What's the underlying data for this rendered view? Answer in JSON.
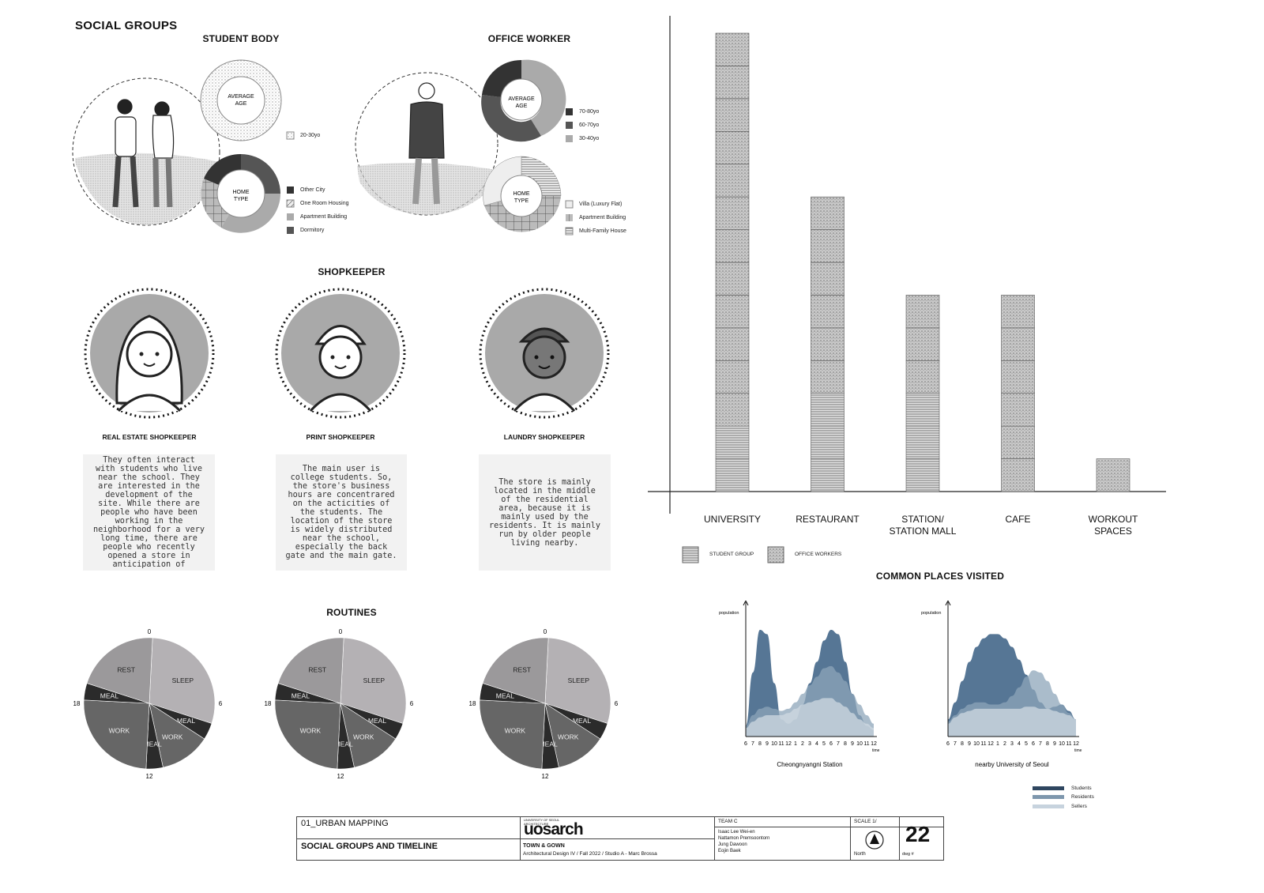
{
  "headings": {
    "social_groups": "SOCIAL GROUPS",
    "student_body": "STUDENT BODY",
    "office_worker": "OFFICE WORKER",
    "shopkeeper": "SHOPKEEPER",
    "routines": "ROUTINES",
    "common_places": "COMMON PLACES VISITED"
  },
  "student_body": {
    "avg_age_label": "AVERAGE AGE",
    "age_legend": [
      "20-30yo"
    ],
    "home_type_label": "HOME TYPE",
    "home_legend": [
      "Other City",
      "One Room Housing",
      "Apartment Building",
      "Dormitory"
    ]
  },
  "office_worker": {
    "avg_age_label": "AVERAGE AGE",
    "age_legend": [
      "70-80yo",
      "60-70yo",
      "30-40yo"
    ],
    "home_type_label": "HOME TYPE",
    "home_legend": [
      "Villa (Luxury Flat)",
      "Apartment Building",
      "Multi-Family House"
    ]
  },
  "shopkeepers": [
    {
      "label": "REAL ESTATE SHOPKEEPER",
      "text": "They often interact with students who live near the school. They are interested in the development of the site. While there are people who have been working in the neighborhood for a very long time, there are people who recently opened a store in anticipation of"
    },
    {
      "label": "PRINT SHOPKEEPER",
      "text": "The main user is college students. So, the store's business hours are concentrared on the acticities of the students. The location of the store is widely distributed near the school, especially the back gate and the main gate."
    },
    {
      "label": "LAUNDRY SHOPKEEPER",
      "text": "The store is mainly located in the middle of the residential area, because it is mainly used by the residents. It is mainly run by older people living nearby."
    }
  ],
  "routine_clock_ticks": [
    "0",
    "6",
    "12",
    "18"
  ],
  "chart_data": [
    {
      "type": "bar",
      "categories": [
        "UNIVERSITY",
        "RESTAURANT",
        "STATION/\nSTATION MALL",
        "CAFE",
        "WORKOUT\nSPACES"
      ],
      "series": [
        {
          "name": "STUDENT GROUP",
          "values": [
            2,
            3,
            3,
            0,
            0
          ]
        },
        {
          "name": "OFFICE WORKERS",
          "values": [
            12,
            6,
            3,
            6,
            1
          ]
        }
      ],
      "stacked": true,
      "ylim": [
        0,
        14
      ],
      "legend": "bottom-left"
    },
    {
      "type": "pie",
      "title": "",
      "labels": [
        "SLEEP",
        "MEAL",
        "WORK",
        "MEAL",
        "WORK",
        "MEAL",
        "REST"
      ],
      "values": [
        7,
        1,
        3,
        1,
        6,
        1,
        5
      ]
    },
    {
      "type": "pie",
      "title": "",
      "labels": [
        "SLEEP",
        "MEAL",
        "WORK",
        "MEAL",
        "WORK",
        "MEAL",
        "REST"
      ],
      "values": [
        7,
        1,
        3,
        1,
        6,
        1,
        5
      ]
    },
    {
      "type": "pie",
      "title": "",
      "labels": [
        "SLEEP",
        "MEAL",
        "WORK",
        "MEAL",
        "WORK",
        "MEAL",
        "REST"
      ],
      "values": [
        7,
        1,
        3,
        1,
        6,
        1,
        5
      ]
    },
    {
      "type": "area",
      "title": "Cheongnyangni Station",
      "ylabel": "population",
      "xlabel": "time",
      "x": [
        "6",
        "7",
        "8",
        "9",
        "10",
        "11",
        "12",
        "1",
        "2",
        "3",
        "4",
        "5",
        "6",
        "7",
        "8",
        "9",
        "10",
        "11",
        "12"
      ],
      "series": [
        {
          "name": "Students",
          "values": [
            0.5,
            3,
            5,
            4.8,
            2.5,
            0.8,
            0.6,
            0.8,
            1.5,
            2.5,
            3.5,
            4.5,
            5,
            4.8,
            3.5,
            2,
            1,
            0.5,
            0.3
          ]
        },
        {
          "name": "Residents",
          "values": [
            0.5,
            1,
            1.3,
            1.4,
            1.3,
            1.2,
            1.3,
            1.6,
            2,
            2.4,
            2.8,
            3.2,
            3.3,
            3,
            2.6,
            2,
            1.5,
            1,
            0.6
          ]
        },
        {
          "name": "Sellers",
          "values": [
            0.4,
            0.7,
            0.9,
            1,
            1,
            1,
            1.1,
            1.3,
            1.5,
            1.6,
            1.7,
            1.8,
            1.8,
            1.6,
            1.4,
            1.1,
            0.8,
            0.6,
            0.4
          ]
        }
      ]
    },
    {
      "type": "area",
      "title": "nearby University of Seoul",
      "ylabel": "population",
      "xlabel": "time",
      "x": [
        "6",
        "7",
        "8",
        "9",
        "10",
        "11",
        "12",
        "1",
        "2",
        "3",
        "4",
        "5",
        "6",
        "7",
        "8",
        "9",
        "10",
        "11",
        "12"
      ],
      "series": [
        {
          "name": "Students",
          "values": [
            0.8,
            1.6,
            2.6,
            3.5,
            4.2,
            4.6,
            4.8,
            4.8,
            4.6,
            4.2,
            3.6,
            2.9,
            2.2,
            1.6,
            1.3,
            1.4,
            1.5,
            1.2,
            0.8
          ]
        },
        {
          "name": "Residents",
          "values": [
            0.7,
            1,
            1.3,
            1.5,
            1.6,
            1.6,
            1.5,
            1.5,
            1.6,
            1.9,
            2.3,
            2.8,
            3.1,
            3,
            2.6,
            2,
            1.5,
            1.1,
            0.8
          ]
        },
        {
          "name": "Sellers",
          "values": [
            0.6,
            0.9,
            1.1,
            1.2,
            1.3,
            1.3,
            1.3,
            1.3,
            1.3,
            1.3,
            1.3,
            1.4,
            1.4,
            1.3,
            1.3,
            1.2,
            1.1,
            1,
            0.8
          ]
        }
      ]
    }
  ],
  "bar_legend": [
    "STUDENT GROUP",
    "OFFICE WORKERS"
  ],
  "area_legend": [
    "Students",
    "Residents",
    "Sellers"
  ],
  "colors": {
    "students": "#4d6f8f",
    "residents": "#8ea6ba",
    "sellers": "#cfd9e2",
    "legend_students": "#2f4660",
    "legend_residents": "#7e97ad",
    "legend_sellers": "#c7d3de"
  },
  "title_block": {
    "project": "01_URBAN MAPPING",
    "drawing_title": "SOCIAL GROUPS AND TIMELINE",
    "school_small": "UNIVERSITY OF SEOUL ARCHITECTURE",
    "logo": "uosarch",
    "course": "TOWN & GOWN",
    "course_detail": "Architectural Design IV / Fall 2022 / Studio A - Marc Brossa",
    "team": "TEAM C",
    "members": [
      "Isaac Lee Wei-en",
      "Nattamon Premsoontorn",
      "Jung Dawoon",
      "Eojin Baek"
    ],
    "scale": "SCALE 1/",
    "north": "North",
    "dwg_label": "dwg #",
    "dwg_number": "22"
  }
}
